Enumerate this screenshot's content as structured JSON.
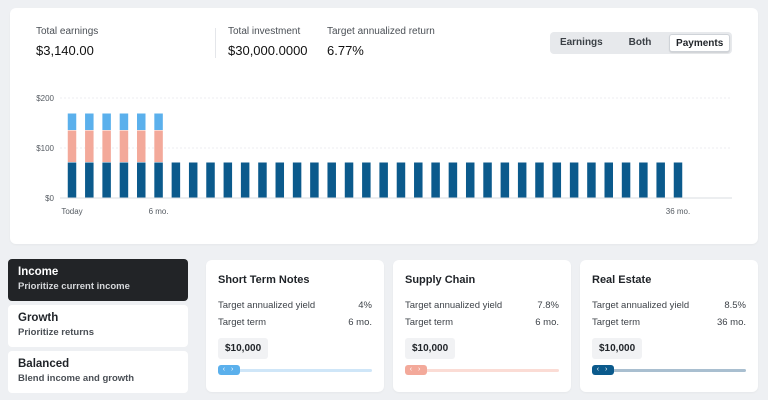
{
  "summary": {
    "earnings_label": "Total earnings",
    "earnings_value": "$3,140.00",
    "investment_label": "Total investment",
    "investment_value": "$30,000.0000",
    "return_label": "Target annualized return",
    "return_value": "6.77%"
  },
  "view_toggle": {
    "options": [
      "Earnings",
      "Both",
      "Payments"
    ],
    "selected": "Payments"
  },
  "colors": {
    "dark_blue": "#0b5a8c",
    "salmon": "#f3a99a",
    "light_blue": "#5bb0ec"
  },
  "chart_data": {
    "type": "bar",
    "stacked": true,
    "y_ticks": [
      "$0",
      "$100",
      "$200"
    ],
    "ylim": [
      0,
      200
    ],
    "x_tick_labels": [
      {
        "index": 0,
        "label": "Today"
      },
      {
        "index": 5,
        "label": "6 mo."
      },
      {
        "index": 35,
        "label": "36 mo."
      }
    ],
    "grid": true,
    "num_bars": 36,
    "series": [
      {
        "color": "#0b5a8c",
        "values": [
          71,
          71,
          71,
          71,
          71,
          71,
          71,
          71,
          71,
          71,
          71,
          71,
          71,
          71,
          71,
          71,
          71,
          71,
          71,
          71,
          71,
          71,
          71,
          71,
          71,
          71,
          71,
          71,
          71,
          71,
          71,
          71,
          71,
          71,
          71,
          71
        ]
      },
      {
        "color": "#f3a99a",
        "values": [
          64,
          64,
          64,
          64,
          64,
          64,
          0,
          0,
          0,
          0,
          0,
          0,
          0,
          0,
          0,
          0,
          0,
          0,
          0,
          0,
          0,
          0,
          0,
          0,
          0,
          0,
          0,
          0,
          0,
          0,
          0,
          0,
          0,
          0,
          0,
          0
        ]
      },
      {
        "color": "#5bb0ec",
        "values": [
          34,
          34,
          34,
          34,
          34,
          34,
          0,
          0,
          0,
          0,
          0,
          0,
          0,
          0,
          0,
          0,
          0,
          0,
          0,
          0,
          0,
          0,
          0,
          0,
          0,
          0,
          0,
          0,
          0,
          0,
          0,
          0,
          0,
          0,
          0,
          0
        ]
      }
    ]
  },
  "strategies": [
    {
      "title": "Income",
      "subtitle": "Prioritize current income",
      "active": true
    },
    {
      "title": "Growth",
      "subtitle": "Prioritize returns",
      "active": false
    },
    {
      "title": "Balanced",
      "subtitle": "Blend income and growth",
      "active": false
    }
  ],
  "products": [
    {
      "title": "Short Term Notes",
      "yield_label": "Target annualized yield",
      "yield_value": "4%",
      "term_label": "Target term",
      "term_value": "6 mo.",
      "amount": "$10,000",
      "color": "#5bb0ec",
      "track_color": "#cfe6f8"
    },
    {
      "title": "Supply Chain",
      "yield_label": "Target annualized yield",
      "yield_value": "7.8%",
      "term_label": "Target term",
      "term_value": "6 mo.",
      "amount": "$10,000",
      "color": "#f3a99a",
      "track_color": "#fbdcd5"
    },
    {
      "title": "Real Estate",
      "yield_label": "Target annualized yield",
      "yield_value": "8.5%",
      "term_label": "Target term",
      "term_value": "36 mo.",
      "amount": "$10,000",
      "color": "#0b5a8c",
      "track_color": "#a9bfd0"
    }
  ],
  "slider_arrows": "‹ ›"
}
